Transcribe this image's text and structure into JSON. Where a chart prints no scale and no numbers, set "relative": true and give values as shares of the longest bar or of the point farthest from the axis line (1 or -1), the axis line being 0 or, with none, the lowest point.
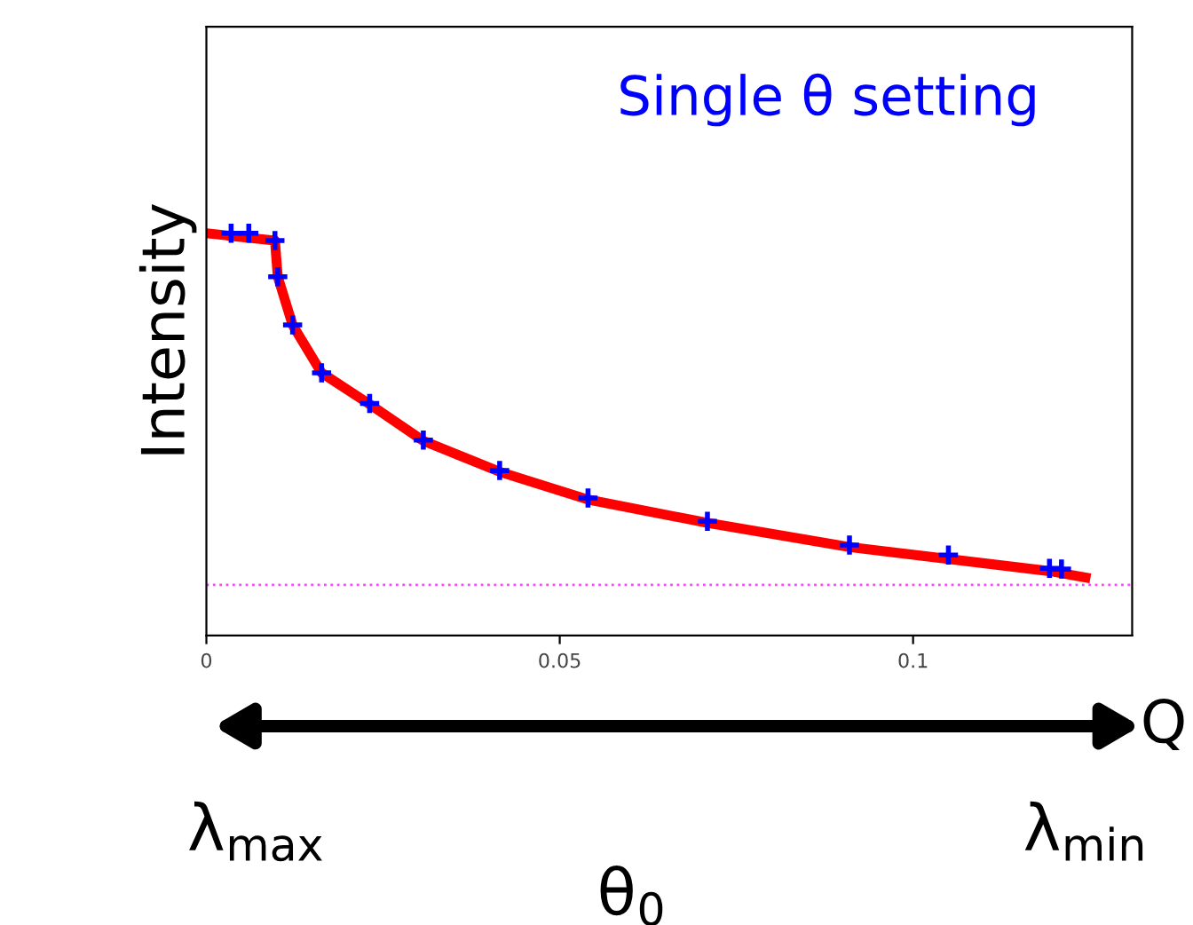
{
  "chart_data": {
    "type": "line",
    "relative": true,
    "ylabel": "Intensity",
    "xlim": [
      0,
      0.131
    ],
    "xticks": [
      0,
      0.05,
      0.1
    ],
    "tick_labels": "x",
    "grid": false,
    "legend": false,
    "series": [
      {
        "color": "#ff0000",
        "marker": "none",
        "line_style": "solid",
        "x": [
          0,
          0.0097,
          0.0101,
          0.0122,
          0.0163,
          0.0231,
          0.0307,
          0.0415,
          0.054,
          0.0709,
          0.091,
          0.1193,
          0.1244
        ],
        "values": [
          1,
          0.982,
          0.892,
          0.772,
          0.653,
          0.575,
          0.484,
          0.407,
          0.338,
          0.28,
          0.22,
          0.16,
          0.144
        ]
      },
      {
        "color": "#0000ff",
        "type": "scatter",
        "marker": "cross",
        "x": [
          0.0035,
          0.006,
          0.0097,
          0.0101,
          0.0122,
          0.0163,
          0.0231,
          0.0307,
          0.0415,
          0.054,
          0.0709,
          0.091,
          0.105,
          0.1193,
          0.121
        ],
        "values": [
          1,
          1,
          0.982,
          0.892,
          0.772,
          0.653,
          0.577,
          0.486,
          0.41,
          0.342,
          0.284,
          0.225,
          0.2,
          0.167,
          0.165
        ]
      }
    ],
    "ref_lines": [
      {
        "axis": "y",
        "value": 0.126,
        "color": "#ff44ff",
        "line_style": "dotted"
      }
    ],
    "annotations": [
      "Single θ setting",
      "Q",
      "λ$_{max}$",
      "λ$_{min}$",
      "θ$_{0}$"
    ]
  }
}
